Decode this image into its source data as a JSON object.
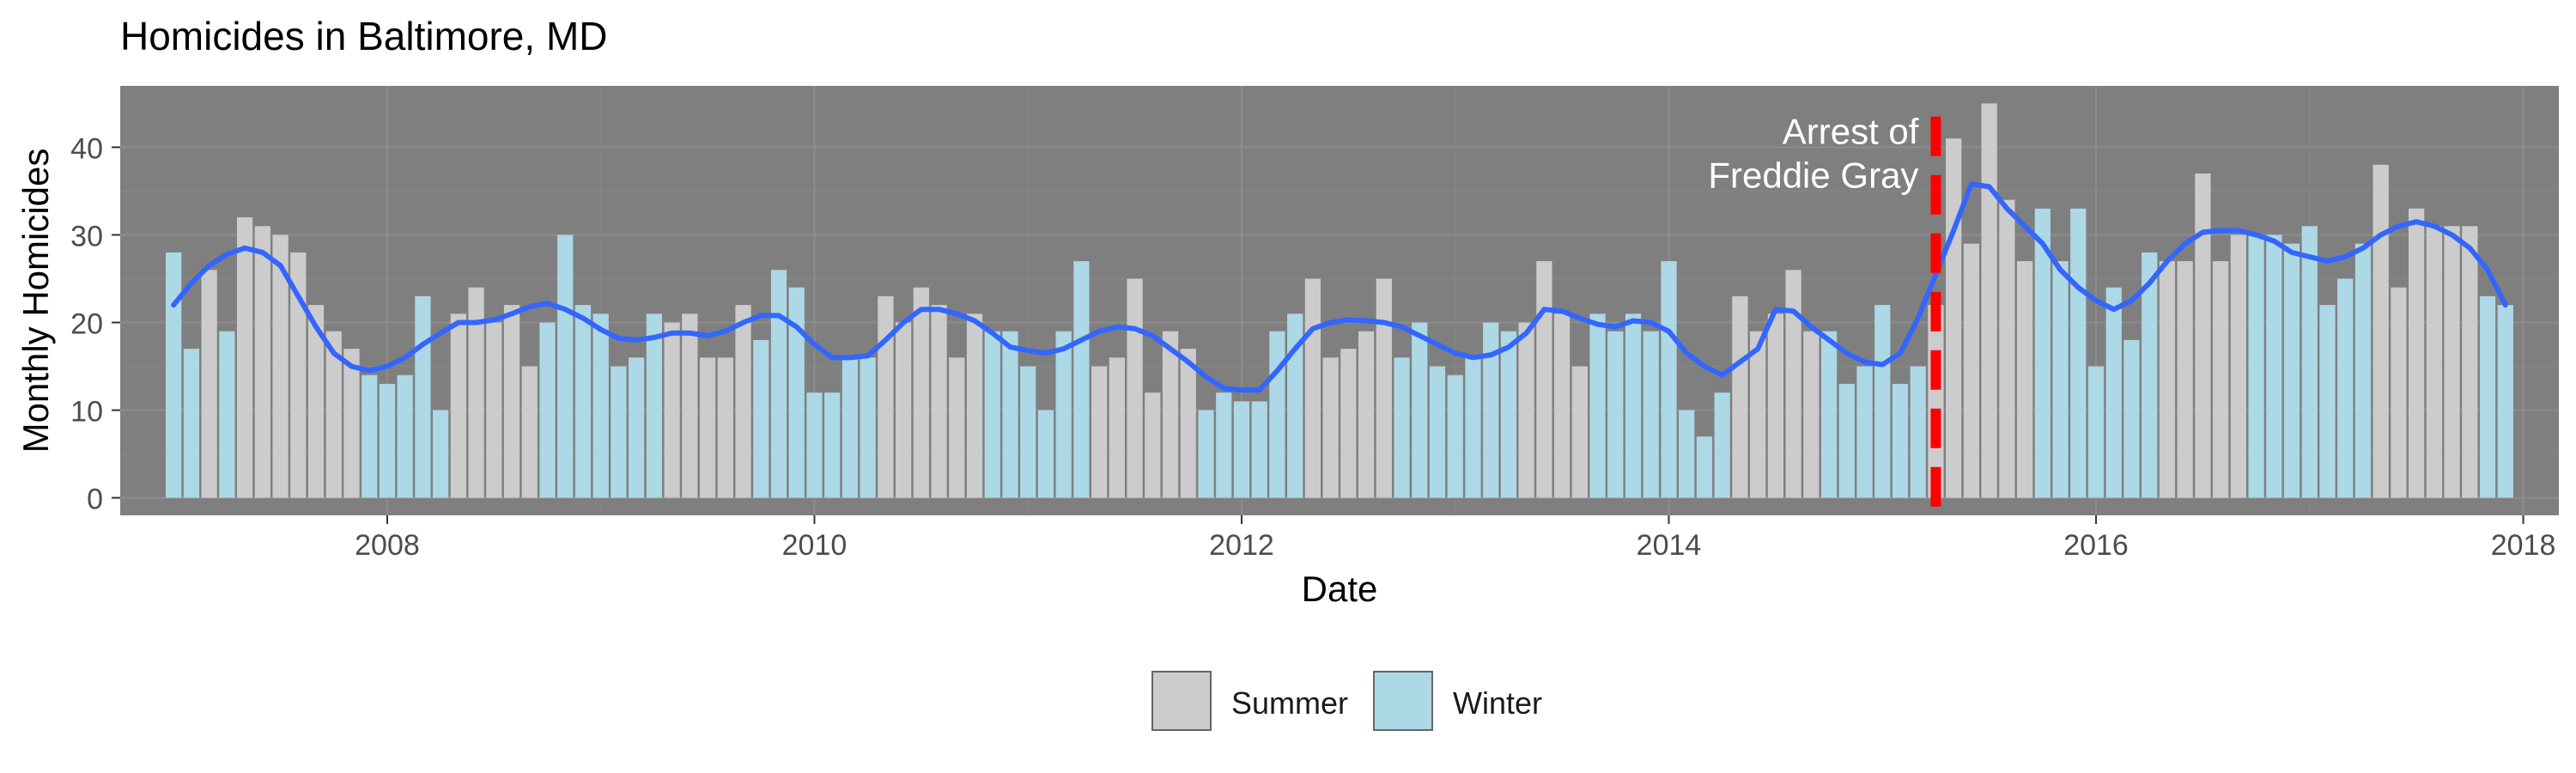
{
  "chart_data": {
    "type": "bar",
    "title": "Homicides in Baltimore, MD",
    "xlabel": "Date",
    "ylabel": "Monthly Homicides",
    "x_ticks": [
      "2008",
      "2010",
      "2012",
      "2014",
      "2016",
      "2018"
    ],
    "y_ticks": [
      "0",
      "10",
      "20",
      "30",
      "40"
    ],
    "xlim": [
      "2006-10",
      "2018-03"
    ],
    "ylim": [
      -2,
      47
    ],
    "grid": true,
    "legend_position": "bottom",
    "legend": [
      {
        "key": "summer",
        "label": "Summer",
        "color": "#cccccc"
      },
      {
        "key": "winter",
        "label": "Winter",
        "color": "#add8e6"
      }
    ],
    "panel_color": "#7f7f7f",
    "months": [
      "2007-01",
      "2007-02",
      "2007-03",
      "2007-04",
      "2007-05",
      "2007-06",
      "2007-07",
      "2007-08",
      "2007-09",
      "2007-10",
      "2007-11",
      "2007-12",
      "2008-01",
      "2008-02",
      "2008-03",
      "2008-04",
      "2008-05",
      "2008-06",
      "2008-07",
      "2008-08",
      "2008-09",
      "2008-10",
      "2008-11",
      "2008-12",
      "2009-01",
      "2009-02",
      "2009-03",
      "2009-04",
      "2009-05",
      "2009-06",
      "2009-07",
      "2009-08",
      "2009-09",
      "2009-10",
      "2009-11",
      "2009-12",
      "2010-01",
      "2010-02",
      "2010-03",
      "2010-04",
      "2010-05",
      "2010-06",
      "2010-07",
      "2010-08",
      "2010-09",
      "2010-10",
      "2010-11",
      "2010-12",
      "2011-01",
      "2011-02",
      "2011-03",
      "2011-04",
      "2011-05",
      "2011-06",
      "2011-07",
      "2011-08",
      "2011-09",
      "2011-10",
      "2011-11",
      "2011-12",
      "2012-01",
      "2012-02",
      "2012-03",
      "2012-04",
      "2012-05",
      "2012-06",
      "2012-07",
      "2012-08",
      "2012-09",
      "2012-10",
      "2012-11",
      "2012-12",
      "2013-01",
      "2013-02",
      "2013-03",
      "2013-04",
      "2013-05",
      "2013-06",
      "2013-07",
      "2013-08",
      "2013-09",
      "2013-10",
      "2013-11",
      "2013-12",
      "2014-01",
      "2014-02",
      "2014-03",
      "2014-04",
      "2014-05",
      "2014-06",
      "2014-07",
      "2014-08",
      "2014-09",
      "2014-10",
      "2014-11",
      "2014-12",
      "2015-01",
      "2015-02",
      "2015-03",
      "2015-04",
      "2015-05",
      "2015-06",
      "2015-07",
      "2015-08",
      "2015-09",
      "2015-10",
      "2015-11",
      "2015-12",
      "2016-01",
      "2016-02",
      "2016-03",
      "2016-04",
      "2016-05",
      "2016-06",
      "2016-07",
      "2016-08",
      "2016-09",
      "2016-10",
      "2016-11",
      "2016-12",
      "2017-01",
      "2017-02",
      "2017-03",
      "2017-04",
      "2017-05",
      "2017-06",
      "2017-07",
      "2017-08",
      "2017-09",
      "2017-10",
      "2017-11",
      "2017-12"
    ],
    "series": [
      {
        "name": "Monthly Homicides",
        "values": [
          28,
          17,
          26,
          19,
          32,
          31,
          30,
          28,
          22,
          19,
          17,
          14,
          13,
          14,
          23,
          10,
          21,
          24,
          20,
          22,
          15,
          20,
          30,
          22,
          21,
          15,
          16,
          21,
          20,
          21,
          16,
          16,
          22,
          18,
          26,
          24,
          12,
          12,
          16,
          16,
          23,
          20,
          24,
          22,
          16,
          21,
          19,
          19,
          15,
          10,
          19,
          27,
          15,
          16,
          25,
          12,
          19,
          17,
          10,
          12,
          11,
          11,
          19,
          21,
          25,
          16,
          17,
          19,
          25,
          16,
          20,
          15,
          14,
          16,
          20,
          19,
          20,
          27,
          21,
          15,
          21,
          19,
          21,
          19,
          27,
          10,
          7,
          12,
          23,
          19,
          21,
          26,
          19,
          19,
          13,
          15,
          22,
          13,
          15,
          22,
          41,
          29,
          45,
          34,
          27,
          33,
          27,
          33,
          15,
          24,
          18,
          28,
          27,
          27,
          37,
          27,
          30,
          30,
          30,
          29,
          31,
          22,
          25,
          29,
          38,
          24,
          33,
          31,
          31,
          31,
          23,
          22
        ]
      },
      {
        "name": "Smoothed trend",
        "values": [
          22,
          24.5,
          26.5,
          27.8,
          28.5,
          28,
          26.5,
          23,
          19.5,
          16.5,
          15,
          14.5,
          15,
          16,
          17.5,
          18.8,
          20,
          20,
          20.3,
          21,
          21.8,
          22.2,
          21.5,
          20.5,
          19.2,
          18.2,
          18,
          18.3,
          18.8,
          18.8,
          18.5,
          19,
          20,
          20.8,
          20.8,
          19.5,
          17.5,
          16,
          16,
          16.2,
          18,
          20,
          21.5,
          21.5,
          21,
          20.2,
          18.8,
          17.2,
          16.8,
          16.5,
          17,
          18,
          19,
          19.5,
          19.3,
          18.5,
          17,
          15.5,
          13.8,
          12.5,
          12.3,
          12.3,
          14.5,
          17,
          19.3,
          20,
          20.3,
          20.2,
          20,
          19.5,
          18.5,
          17.5,
          16.5,
          16,
          16.3,
          17.2,
          18.8,
          21.5,
          21.3,
          20.5,
          19.8,
          19.5,
          20.2,
          20,
          19,
          16.5,
          15,
          14,
          15.5,
          17,
          21.5,
          21.3,
          19.5,
          18,
          16.5,
          15.5,
          15.2,
          16.5,
          20.5,
          25.5,
          30.5,
          35.8,
          35.5,
          33,
          31,
          29,
          26,
          24,
          22.5,
          21.5,
          22.5,
          24.5,
          27,
          29,
          30.3,
          30.5,
          30.5,
          30,
          29.3,
          28,
          27.5,
          27,
          27.5,
          28.5,
          30,
          31,
          31.5,
          31,
          30,
          28.5,
          26,
          22
        ]
      }
    ],
    "season": [
      "w",
      "w",
      "s",
      "w",
      "s",
      "s",
      "s",
      "s",
      "s",
      "s",
      "s",
      "w",
      "w",
      "w",
      "w",
      "w",
      "s",
      "s",
      "s",
      "s",
      "s",
      "w",
      "w",
      "w",
      "w",
      "w",
      "w",
      "w",
      "s",
      "s",
      "s",
      "s",
      "s",
      "w",
      "w",
      "w",
      "w",
      "w",
      "w",
      "w",
      "s",
      "s",
      "s",
      "s",
      "s",
      "s",
      "w",
      "w",
      "w",
      "w",
      "w",
      "w",
      "s",
      "s",
      "s",
      "s",
      "s",
      "s",
      "w",
      "w",
      "w",
      "w",
      "w",
      "w",
      "s",
      "s",
      "s",
      "s",
      "s",
      "w",
      "w",
      "w",
      "w",
      "w",
      "w",
      "w",
      "s",
      "s",
      "s",
      "s",
      "w",
      "w",
      "w",
      "w",
      "w",
      "w",
      "w",
      "w",
      "s",
      "s",
      "s",
      "s",
      "s",
      "w",
      "w",
      "w",
      "w",
      "w",
      "w",
      "s",
      "s",
      "s",
      "s",
      "s",
      "s",
      "w",
      "w",
      "w",
      "w",
      "w",
      "w",
      "w",
      "s",
      "s",
      "s",
      "s",
      "s",
      "w",
      "w",
      "w",
      "w",
      "w",
      "w",
      "w",
      "s",
      "s",
      "s",
      "s",
      "s",
      "s",
      "w",
      "w"
    ],
    "smooth_color": "#3366ff",
    "annotation": {
      "line1": "Arrest of",
      "line2": "Freddie Gray",
      "date": "2015-04",
      "color": "#ff0000"
    }
  }
}
